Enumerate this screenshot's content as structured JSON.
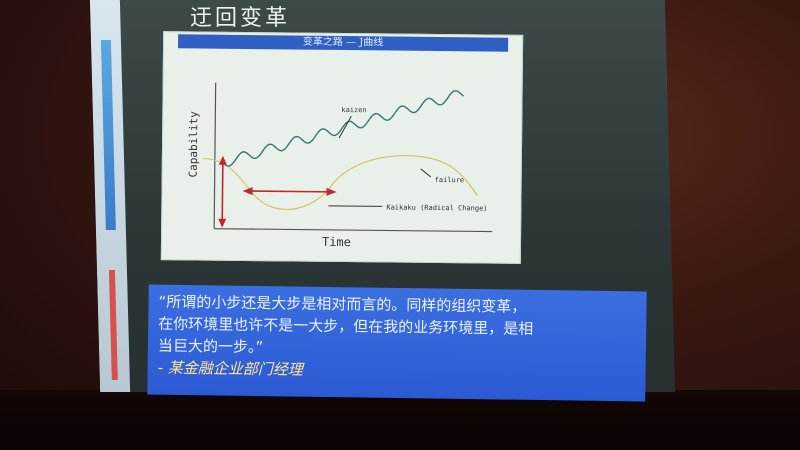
{
  "slide": {
    "title": "迂回变革",
    "diagram": {
      "header": "变革之路 — J曲线",
      "ylabel": "Capability",
      "xlabel": "Time",
      "kaizen_label": "kaizen",
      "failure_label": "failure",
      "kaikaku_label": "Kaikaku (Radical Change)"
    },
    "quote": {
      "line1": "“所谓的小步还是大步是相对而言的。同样的组织变革，",
      "line2": "在你环境里也许不是一大步，但在我的业务环境里，是相",
      "line3": "当巨大的一步。”",
      "attribution": "-  某金融企业部门经理"
    }
  },
  "colors": {
    "diagram_header": "#2f5fc2",
    "quote_bg": "#3b6fe0",
    "wave_line": "#2f7a74",
    "failure_line": "#d8c45c",
    "arrow_red": "#c0282c"
  }
}
